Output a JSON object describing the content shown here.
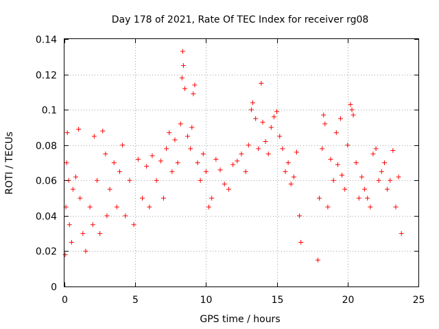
{
  "chart_data": {
    "type": "scatter",
    "title": "Day 178 of 2021, Rate Of TEC Index for receiver rg08",
    "xlabel": "GPS time / hours",
    "ylabel": "ROTI / TECUs",
    "xlim": [
      0,
      25
    ],
    "ylim": [
      0,
      0.14
    ],
    "x_ticks": [
      0,
      5,
      10,
      15,
      20,
      25
    ],
    "x_tick_labels": [
      "0",
      "5",
      "10",
      "15",
      "20",
      "25"
    ],
    "y_ticks": [
      0,
      0.02,
      0.04,
      0.06,
      0.08,
      0.1,
      0.12,
      0.14
    ],
    "y_tick_labels": [
      "0",
      "0.02",
      "0.04",
      "0.06",
      "0.08",
      "0.1",
      "0.12",
      "0.14"
    ],
    "grid": true,
    "marker": "+",
    "marker_color": "#ff0000",
    "data_gaps_hours": [
      [
        16.8,
        17.8
      ]
    ],
    "series": [
      {
        "name": "ROTI",
        "points": [
          [
            0.05,
            0.018
          ],
          [
            0.1,
            0.045
          ],
          [
            0.15,
            0.07
          ],
          [
            0.2,
            0.087
          ],
          [
            0.3,
            0.06
          ],
          [
            0.35,
            0.035
          ],
          [
            0.5,
            0.025
          ],
          [
            0.6,
            0.055
          ],
          [
            0.8,
            0.062
          ],
          [
            1.0,
            0.089
          ],
          [
            1.1,
            0.05
          ],
          [
            1.3,
            0.03
          ],
          [
            1.5,
            0.02
          ],
          [
            1.8,
            0.045
          ],
          [
            2.0,
            0.035
          ],
          [
            2.1,
            0.085
          ],
          [
            2.3,
            0.06
          ],
          [
            2.5,
            0.03
          ],
          [
            2.7,
            0.088
          ],
          [
            2.9,
            0.075
          ],
          [
            3.0,
            0.04
          ],
          [
            3.2,
            0.055
          ],
          [
            3.5,
            0.07
          ],
          [
            3.7,
            0.045
          ],
          [
            3.9,
            0.065
          ],
          [
            4.1,
            0.08
          ],
          [
            4.3,
            0.04
          ],
          [
            4.6,
            0.06
          ],
          [
            4.9,
            0.035
          ],
          [
            5.2,
            0.072
          ],
          [
            5.5,
            0.05
          ],
          [
            5.8,
            0.068
          ],
          [
            6.0,
            0.045
          ],
          [
            6.2,
            0.074
          ],
          [
            6.5,
            0.06
          ],
          [
            6.8,
            0.071
          ],
          [
            7.0,
            0.05
          ],
          [
            7.2,
            0.078
          ],
          [
            7.4,
            0.087
          ],
          [
            7.6,
            0.065
          ],
          [
            7.8,
            0.083
          ],
          [
            8.0,
            0.07
          ],
          [
            8.2,
            0.092
          ],
          [
            8.3,
            0.118
          ],
          [
            8.35,
            0.133
          ],
          [
            8.4,
            0.125
          ],
          [
            8.5,
            0.112
          ],
          [
            8.7,
            0.085
          ],
          [
            8.9,
            0.078
          ],
          [
            9.0,
            0.09
          ],
          [
            9.1,
            0.109
          ],
          [
            9.2,
            0.114
          ],
          [
            9.4,
            0.07
          ],
          [
            9.6,
            0.06
          ],
          [
            9.8,
            0.075
          ],
          [
            10.0,
            0.065
          ],
          [
            10.2,
            0.045
          ],
          [
            10.4,
            0.05
          ],
          [
            10.7,
            0.072
          ],
          [
            11.0,
            0.066
          ],
          [
            11.3,
            0.058
          ],
          [
            11.6,
            0.055
          ],
          [
            11.9,
            0.069
          ],
          [
            12.2,
            0.071
          ],
          [
            12.5,
            0.075
          ],
          [
            12.8,
            0.065
          ],
          [
            13.0,
            0.08
          ],
          [
            13.2,
            0.1
          ],
          [
            13.3,
            0.104
          ],
          [
            13.5,
            0.095
          ],
          [
            13.7,
            0.078
          ],
          [
            13.9,
            0.115
          ],
          [
            14.0,
            0.093
          ],
          [
            14.2,
            0.082
          ],
          [
            14.4,
            0.075
          ],
          [
            14.6,
            0.09
          ],
          [
            14.8,
            0.096
          ],
          [
            15.0,
            0.099
          ],
          [
            15.2,
            0.085
          ],
          [
            15.4,
            0.078
          ],
          [
            15.6,
            0.065
          ],
          [
            15.8,
            0.07
          ],
          [
            16.0,
            0.058
          ],
          [
            16.2,
            0.062
          ],
          [
            16.4,
            0.076
          ],
          [
            16.6,
            0.04
          ],
          [
            16.7,
            0.025
          ],
          [
            17.9,
            0.015
          ],
          [
            18.0,
            0.05
          ],
          [
            18.2,
            0.078
          ],
          [
            18.3,
            0.097
          ],
          [
            18.4,
            0.092
          ],
          [
            18.6,
            0.045
          ],
          [
            18.8,
            0.072
          ],
          [
            19.0,
            0.06
          ],
          [
            19.2,
            0.087
          ],
          [
            19.3,
            0.069
          ],
          [
            19.5,
            0.095
          ],
          [
            19.6,
            0.063
          ],
          [
            19.8,
            0.055
          ],
          [
            20.0,
            0.08
          ],
          [
            20.2,
            0.103
          ],
          [
            20.3,
            0.1
          ],
          [
            20.4,
            0.097
          ],
          [
            20.6,
            0.07
          ],
          [
            20.8,
            0.05
          ],
          [
            21.0,
            0.062
          ],
          [
            21.2,
            0.055
          ],
          [
            21.4,
            0.05
          ],
          [
            21.6,
            0.045
          ],
          [
            21.8,
            0.075
          ],
          [
            22.0,
            0.078
          ],
          [
            22.2,
            0.06
          ],
          [
            22.4,
            0.065
          ],
          [
            22.6,
            0.07
          ],
          [
            22.8,
            0.055
          ],
          [
            23.0,
            0.06
          ],
          [
            23.2,
            0.077
          ],
          [
            23.4,
            0.045
          ],
          [
            23.6,
            0.062
          ],
          [
            23.8,
            0.03
          ]
        ]
      }
    ]
  }
}
